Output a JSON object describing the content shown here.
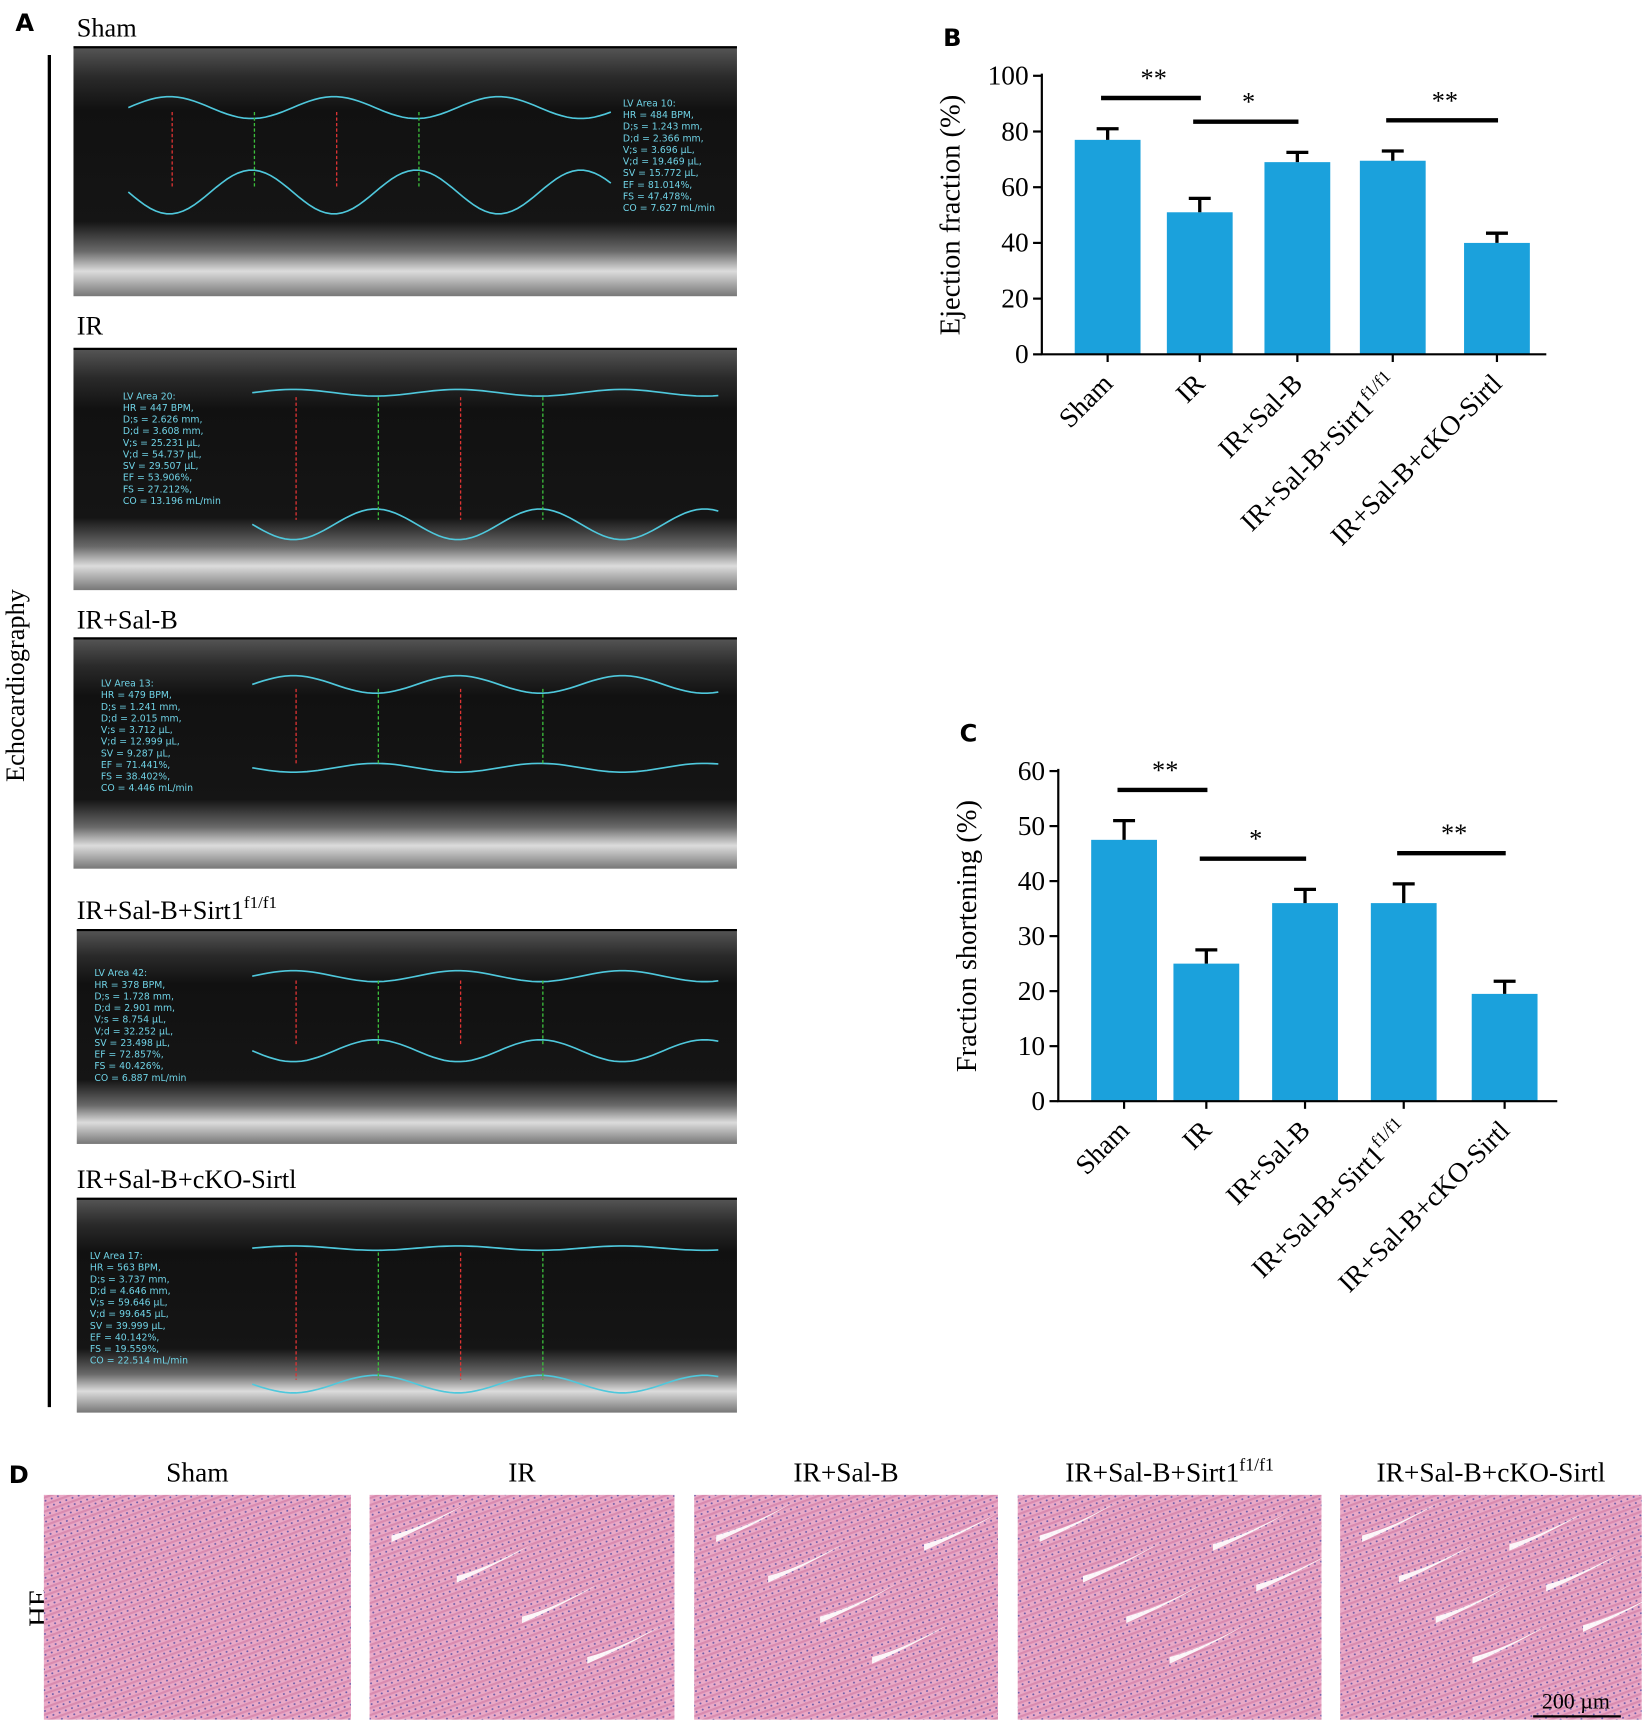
{
  "panel_a": {
    "letter": "A",
    "side_label": "Echocardiography",
    "images": [
      {
        "title": "Sham",
        "readout": [
          "LV Area 10:",
          "HR = 484 BPM,",
          "D;s = 1.243 mm,",
          "D;d = 2.366 mm,",
          "V;s = 3.696 µL,",
          "V;d = 19.469 µL,",
          "SV = 15.772 µL,",
          "EF = 81.014%,",
          "FS = 47.478%,",
          "CO = 7.627 mL/min"
        ]
      },
      {
        "title": "IR",
        "readout": [
          "LV Area 20:",
          "HR = 447 BPM,",
          "D;s = 2.626 mm,",
          "D;d = 3.608 mm,",
          "V;s = 25.231 µL,",
          "V;d = 54.737 µL,",
          "SV = 29.507 µL,",
          "EF = 53.906%,",
          "FS = 27.212%,",
          "CO = 13.196 mL/min"
        ]
      },
      {
        "title": "IR+Sal-B",
        "readout": [
          "LV Area 13:",
          "HR = 479 BPM,",
          "D;s = 1.241 mm,",
          "D;d = 2.015 mm,",
          "V;s = 3.712 µL,",
          "V;d = 12.999 µL,",
          "SV = 9.287 µL,",
          "EF = 71.441%,",
          "FS = 38.402%,",
          "CO = 4.446 mL/min"
        ]
      },
      {
        "title": {
          "text": "IR+Sal-B+Sirt1",
          "superscript": "f1/f1"
        },
        "readout": [
          "LV Area 42:",
          "HR = 378 BPM,",
          "D;s = 1.728 mm,",
          "D;d = 2.901 mm,",
          "V;s = 8.754 µL,",
          "V;d = 32.252 µL,",
          "SV = 23.498 µL,",
          "EF = 72.857%,",
          "FS = 40.426%,",
          "CO = 6.887 mL/min"
        ]
      },
      {
        "title": "IR+Sal-B+cKO-Sirtl",
        "readout": [
          "LV Area 17:",
          "HR = 563 BPM,",
          "D;s = 3.737 mm,",
          "D;d = 4.646 mm,",
          "V;s = 59.646 µL,",
          "V;d = 99.645 µL,",
          "SV = 39.999 µL,",
          "EF = 40.142%,",
          "FS = 19.559%,",
          "CO = 22.514 mL/min"
        ]
      }
    ]
  },
  "chart_data": [
    {
      "type": "bar",
      "letter": "B",
      "y_label": "Ejection fraction (%)",
      "categories": [
        "Sham",
        "IR",
        "IR+Sal-B",
        {
          "text": "IR+Sal-B+Sirt1",
          "superscript": "f1/f1"
        },
        "IR+Sal-B+cKO-Sirtl"
      ],
      "values": [
        77,
        51,
        69,
        69.5,
        40
      ],
      "errors": [
        4,
        5,
        3.5,
        3.5,
        3.5
      ],
      "color": "#1ba1dc",
      "ylim": [
        0,
        100
      ],
      "yticks": [
        0,
        20,
        40,
        60,
        80,
        100
      ],
      "annotations": [
        {
          "text": "**",
          "between": [
            0,
            1
          ]
        },
        {
          "text": "*",
          "between": [
            1,
            2
          ]
        },
        {
          "text": "**",
          "between": [
            3,
            4
          ]
        }
      ]
    },
    {
      "type": "bar",
      "letter": "C",
      "y_label": "Fraction shortening (%)",
      "categories": [
        "Sham",
        "IR",
        "IR+Sal-B",
        {
          "text": "IR+Sal-B+Sirt1",
          "superscript": "f1/f1"
        },
        "IR+Sal-B+cKO-Sirtl"
      ],
      "values": [
        47.5,
        25,
        36,
        36,
        19.5
      ],
      "errors": [
        3.5,
        2.5,
        2.5,
        3.5,
        2.3
      ],
      "color": "#1ba1dc",
      "ylim": [
        0,
        60
      ],
      "yticks": [
        0,
        10,
        20,
        30,
        40,
        50,
        60
      ],
      "annotations": [
        {
          "text": "**",
          "between": [
            0,
            1
          ]
        },
        {
          "text": "*",
          "between": [
            1,
            2
          ]
        },
        {
          "text": "**",
          "between": [
            3,
            4
          ]
        }
      ]
    }
  ],
  "panel_d": {
    "letter": "D",
    "row_label": "HE",
    "titles": [
      "Sham",
      "IR",
      "IR+Sal-B",
      {
        "text": "IR+Sal-B+Sirt1",
        "superscript": "f1/f1"
      },
      "IR+Sal-B+cKO-Sirtl"
    ],
    "scale_bar": "200 µm"
  }
}
